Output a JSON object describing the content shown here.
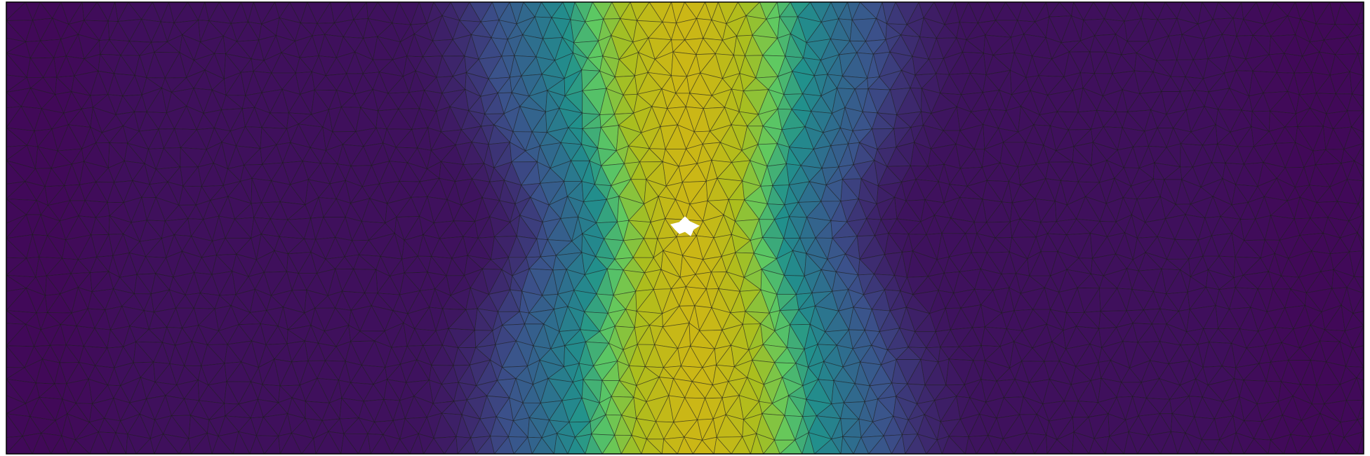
{
  "figure": {
    "kind": "finite-element-mesh-field-plot",
    "colormap": "viridis",
    "mesh": "unstructured-triangular",
    "mesh_edge_color": "#1a1a1a",
    "background": "#ffffff",
    "frame_color": "#000000",
    "field_profile": {
      "low_color": "#30123b",
      "edge_low_color": "#2a0b3f",
      "high_color": "#c9b716",
      "peak_location_fraction_of_width": 0.5,
      "hole_present": true
    }
  }
}
